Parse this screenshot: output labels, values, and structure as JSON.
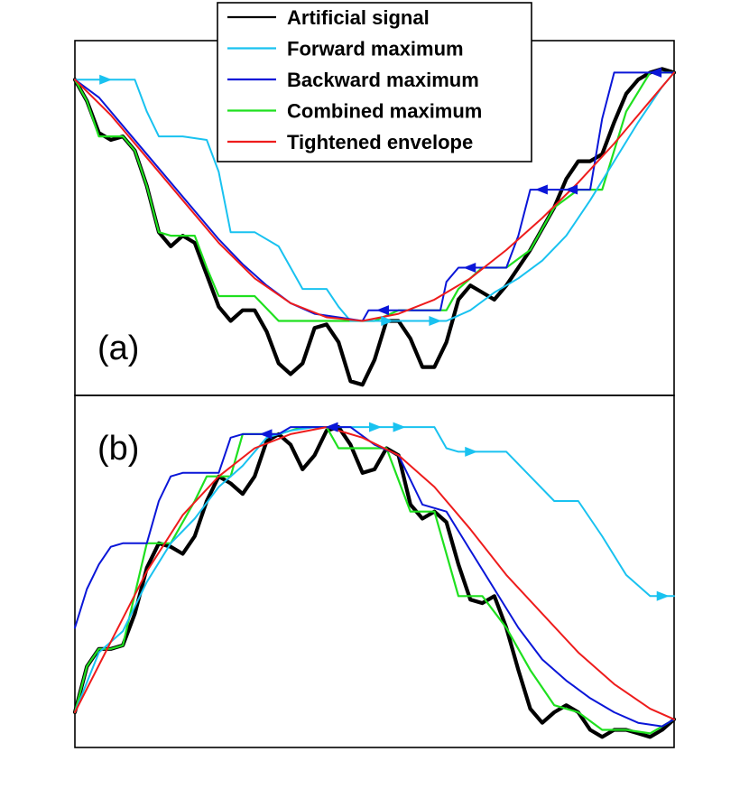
{
  "chart_data": [
    {
      "type": "line",
      "panel_label": "(a)",
      "title": "",
      "xlabel": "",
      "ylabel": "",
      "xlim": [
        0,
        1
      ],
      "ylim": [
        0,
        1
      ],
      "grid": false,
      "series": [
        {
          "name": "Artificial signal",
          "x": [
            0.0,
            0.02,
            0.04,
            0.06,
            0.08,
            0.1,
            0.12,
            0.14,
            0.16,
            0.18,
            0.2,
            0.22,
            0.24,
            0.26,
            0.28,
            0.3,
            0.32,
            0.34,
            0.36,
            0.38,
            0.4,
            0.42,
            0.44,
            0.46,
            0.48,
            0.5,
            0.52,
            0.54,
            0.56,
            0.58,
            0.6,
            0.62,
            0.64,
            0.66,
            0.68,
            0.7,
            0.72,
            0.74,
            0.76,
            0.78,
            0.8,
            0.82,
            0.84,
            0.86,
            0.88,
            0.9,
            0.92,
            0.94,
            0.96,
            0.98,
            1.0
          ],
          "y": [
            0.89,
            0.83,
            0.74,
            0.72,
            0.73,
            0.69,
            0.59,
            0.46,
            0.42,
            0.45,
            0.43,
            0.34,
            0.25,
            0.21,
            0.24,
            0.24,
            0.18,
            0.09,
            0.06,
            0.09,
            0.19,
            0.2,
            0.15,
            0.04,
            0.03,
            0.1,
            0.21,
            0.21,
            0.16,
            0.08,
            0.08,
            0.15,
            0.27,
            0.31,
            0.29,
            0.27,
            0.31,
            0.36,
            0.41,
            0.47,
            0.53,
            0.61,
            0.66,
            0.66,
            0.68,
            0.77,
            0.85,
            0.89,
            0.91,
            0.92,
            0.91
          ]
        },
        {
          "name": "Forward maximum",
          "x": [
            0.0,
            0.1,
            0.12,
            0.14,
            0.18,
            0.22,
            0.24,
            0.26,
            0.3,
            0.34,
            0.38,
            0.42,
            0.44,
            0.46,
            0.48,
            0.5,
            0.54,
            0.58,
            0.62,
            0.66,
            0.7,
            0.74,
            0.78,
            0.82,
            0.86,
            0.9,
            0.94,
            0.98,
            1.0
          ],
          "y": [
            0.89,
            0.89,
            0.8,
            0.73,
            0.73,
            0.72,
            0.63,
            0.46,
            0.46,
            0.42,
            0.3,
            0.3,
            0.25,
            0.21,
            0.21,
            0.21,
            0.21,
            0.21,
            0.21,
            0.24,
            0.29,
            0.33,
            0.38,
            0.45,
            0.55,
            0.66,
            0.77,
            0.87,
            0.91
          ]
        },
        {
          "name": "Backward maximum",
          "x": [
            0.0,
            0.04,
            0.08,
            0.12,
            0.16,
            0.2,
            0.24,
            0.28,
            0.32,
            0.36,
            0.4,
            0.44,
            0.48,
            0.49,
            0.54,
            0.58,
            0.61,
            0.62,
            0.64,
            0.68,
            0.72,
            0.74,
            0.76,
            0.8,
            0.86,
            0.88,
            0.9,
            0.94,
            1.0
          ],
          "y": [
            0.89,
            0.84,
            0.76,
            0.68,
            0.6,
            0.52,
            0.44,
            0.37,
            0.31,
            0.26,
            0.23,
            0.22,
            0.21,
            0.24,
            0.24,
            0.24,
            0.24,
            0.32,
            0.36,
            0.36,
            0.36,
            0.45,
            0.58,
            0.58,
            0.58,
            0.78,
            0.91,
            0.91,
            0.91
          ]
        },
        {
          "name": "Combined maximum",
          "x": [
            0.0,
            0.02,
            0.04,
            0.08,
            0.1,
            0.12,
            0.14,
            0.16,
            0.2,
            0.22,
            0.24,
            0.26,
            0.3,
            0.34,
            0.38,
            0.42,
            0.46,
            0.5,
            0.54,
            0.58,
            0.62,
            0.64,
            0.68,
            0.72,
            0.76,
            0.8,
            0.84,
            0.88,
            0.92,
            0.96,
            1.0
          ],
          "y": [
            0.89,
            0.83,
            0.73,
            0.73,
            0.69,
            0.59,
            0.46,
            0.45,
            0.45,
            0.36,
            0.28,
            0.28,
            0.28,
            0.21,
            0.21,
            0.21,
            0.21,
            0.21,
            0.24,
            0.24,
            0.24,
            0.3,
            0.36,
            0.36,
            0.41,
            0.53,
            0.58,
            0.58,
            0.8,
            0.91,
            0.91
          ]
        },
        {
          "name": "Tightened envelope",
          "x": [
            0.0,
            0.06,
            0.12,
            0.18,
            0.24,
            0.3,
            0.36,
            0.42,
            0.48,
            0.54,
            0.6,
            0.66,
            0.72,
            0.78,
            0.84,
            0.9,
            0.96,
            1.0
          ],
          "y": [
            0.89,
            0.79,
            0.67,
            0.55,
            0.43,
            0.33,
            0.26,
            0.22,
            0.21,
            0.23,
            0.27,
            0.33,
            0.41,
            0.5,
            0.6,
            0.71,
            0.83,
            0.91
          ]
        }
      ]
    },
    {
      "type": "line",
      "panel_label": "(b)",
      "title": "",
      "xlabel": "",
      "ylabel": "",
      "xlim": [
        0,
        1
      ],
      "ylim": [
        0,
        1
      ],
      "grid": false,
      "series": [
        {
          "name": "Artificial signal",
          "x": [
            0.0,
            0.02,
            0.04,
            0.06,
            0.08,
            0.1,
            0.12,
            0.14,
            0.16,
            0.18,
            0.2,
            0.22,
            0.24,
            0.26,
            0.28,
            0.3,
            0.32,
            0.34,
            0.36,
            0.38,
            0.4,
            0.42,
            0.44,
            0.46,
            0.48,
            0.5,
            0.52,
            0.54,
            0.56,
            0.58,
            0.6,
            0.62,
            0.64,
            0.66,
            0.68,
            0.7,
            0.72,
            0.74,
            0.76,
            0.78,
            0.8,
            0.82,
            0.84,
            0.86,
            0.88,
            0.9,
            0.92,
            0.94,
            0.96,
            0.98,
            1.0
          ],
          "y": [
            0.1,
            0.23,
            0.28,
            0.28,
            0.29,
            0.38,
            0.51,
            0.58,
            0.57,
            0.55,
            0.6,
            0.7,
            0.77,
            0.75,
            0.72,
            0.77,
            0.87,
            0.89,
            0.86,
            0.79,
            0.83,
            0.9,
            0.91,
            0.86,
            0.78,
            0.79,
            0.85,
            0.83,
            0.69,
            0.65,
            0.67,
            0.64,
            0.52,
            0.42,
            0.41,
            0.43,
            0.34,
            0.22,
            0.11,
            0.07,
            0.1,
            0.12,
            0.1,
            0.05,
            0.03,
            0.05,
            0.05,
            0.04,
            0.03,
            0.05,
            0.08
          ]
        },
        {
          "name": "Forward maximum",
          "x": [
            0.0,
            0.04,
            0.08,
            0.12,
            0.16,
            0.2,
            0.24,
            0.28,
            0.32,
            0.36,
            0.4,
            0.44,
            0.48,
            0.52,
            0.56,
            0.6,
            0.62,
            0.64,
            0.68,
            0.72,
            0.76,
            0.8,
            0.84,
            0.88,
            0.92,
            0.96,
            1.0
          ],
          "y": [
            0.1,
            0.27,
            0.33,
            0.47,
            0.58,
            0.65,
            0.74,
            0.8,
            0.88,
            0.9,
            0.91,
            0.91,
            0.91,
            0.91,
            0.91,
            0.91,
            0.85,
            0.84,
            0.84,
            0.84,
            0.77,
            0.7,
            0.7,
            0.6,
            0.49,
            0.43,
            0.43
          ]
        },
        {
          "name": "Backward maximum",
          "x": [
            0.0,
            0.02,
            0.04,
            0.06,
            0.08,
            0.12,
            0.14,
            0.16,
            0.18,
            0.2,
            0.24,
            0.26,
            0.28,
            0.3,
            0.34,
            0.36,
            0.38,
            0.4,
            0.46,
            0.5,
            0.54,
            0.58,
            0.62,
            0.66,
            0.7,
            0.74,
            0.78,
            0.82,
            0.86,
            0.9,
            0.94,
            0.98,
            1.0
          ],
          "y": [
            0.34,
            0.45,
            0.52,
            0.57,
            0.58,
            0.58,
            0.7,
            0.77,
            0.78,
            0.78,
            0.78,
            0.88,
            0.89,
            0.89,
            0.89,
            0.91,
            0.91,
            0.91,
            0.91,
            0.86,
            0.83,
            0.69,
            0.67,
            0.56,
            0.45,
            0.34,
            0.25,
            0.19,
            0.14,
            0.1,
            0.07,
            0.06,
            0.08
          ]
        },
        {
          "name": "Combined maximum",
          "x": [
            0.0,
            0.02,
            0.04,
            0.06,
            0.08,
            0.12,
            0.14,
            0.16,
            0.2,
            0.22,
            0.24,
            0.26,
            0.28,
            0.32,
            0.34,
            0.38,
            0.4,
            0.42,
            0.44,
            0.48,
            0.52,
            0.56,
            0.6,
            0.64,
            0.68,
            0.72,
            0.76,
            0.8,
            0.84,
            0.88,
            0.92,
            0.96,
            1.0
          ],
          "y": [
            0.1,
            0.23,
            0.28,
            0.28,
            0.29,
            0.58,
            0.58,
            0.58,
            0.7,
            0.77,
            0.77,
            0.77,
            0.89,
            0.89,
            0.89,
            0.91,
            0.91,
            0.91,
            0.85,
            0.85,
            0.85,
            0.67,
            0.67,
            0.43,
            0.43,
            0.34,
            0.22,
            0.12,
            0.1,
            0.05,
            0.05,
            0.04,
            0.08
          ]
        },
        {
          "name": "Tightened envelope",
          "x": [
            0.0,
            0.06,
            0.12,
            0.18,
            0.24,
            0.3,
            0.36,
            0.42,
            0.48,
            0.54,
            0.6,
            0.66,
            0.72,
            0.78,
            0.84,
            0.9,
            0.96,
            1.0
          ],
          "y": [
            0.1,
            0.3,
            0.5,
            0.66,
            0.77,
            0.85,
            0.89,
            0.91,
            0.88,
            0.83,
            0.74,
            0.62,
            0.49,
            0.38,
            0.27,
            0.18,
            0.11,
            0.08
          ]
        }
      ]
    }
  ],
  "legend": {
    "items": [
      {
        "label": "Artificial signal",
        "color": "#000000"
      },
      {
        "label": "Forward maximum",
        "color": "#19c2f0"
      },
      {
        "label": "Backward maximum",
        "color": "#0a16d8"
      },
      {
        "label": "Combined maximum",
        "color": "#1fe01f"
      },
      {
        "label": "Tightened envelope",
        "color": "#ee1c1c"
      }
    ],
    "placement": "top-center"
  }
}
